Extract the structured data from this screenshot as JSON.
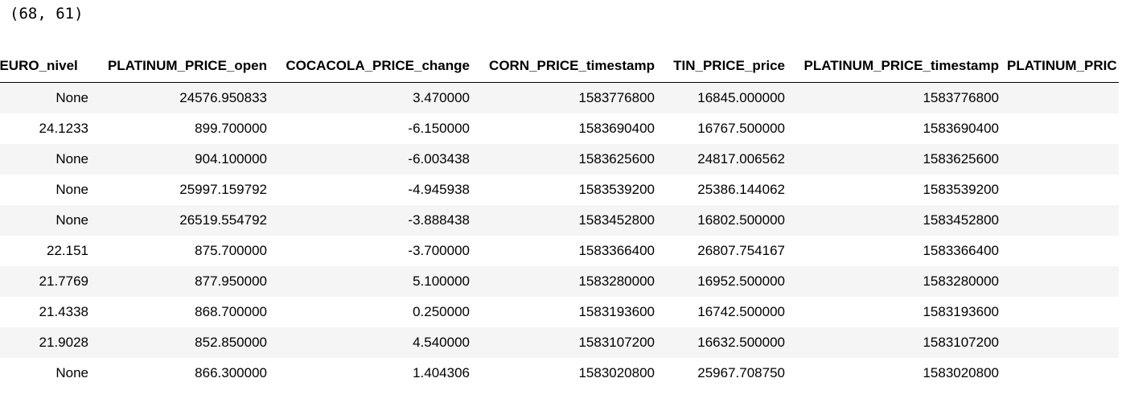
{
  "output": {
    "shape_text": "(68, 61)"
  },
  "table": {
    "columns": [
      "_EURO_nivel",
      "PLATINUM_PRICE_open",
      "COCACOLA_PRICE_change",
      "CORN_PRICE_timestamp",
      "TIN_PRICE_price",
      "PLATINUM_PRICE_timestamp",
      "PLATINUM_PRIC"
    ],
    "rows": [
      [
        "None",
        "24576.950833",
        "3.470000",
        "1583776800",
        "16845.000000",
        "1583776800",
        ""
      ],
      [
        "24.1233",
        "899.700000",
        "-6.150000",
        "1583690400",
        "16767.500000",
        "1583690400",
        ""
      ],
      [
        "None",
        "904.100000",
        "-6.003438",
        "1583625600",
        "24817.006562",
        "1583625600",
        ""
      ],
      [
        "None",
        "25997.159792",
        "-4.945938",
        "1583539200",
        "25386.144062",
        "1583539200",
        ""
      ],
      [
        "None",
        "26519.554792",
        "-3.888438",
        "1583452800",
        "16802.500000",
        "1583452800",
        ""
      ],
      [
        "22.151",
        "875.700000",
        "-3.700000",
        "1583366400",
        "26807.754167",
        "1583366400",
        ""
      ],
      [
        "21.7769",
        "877.950000",
        "5.100000",
        "1583280000",
        "16952.500000",
        "1583280000",
        ""
      ],
      [
        "21.4338",
        "868.700000",
        "0.250000",
        "1583193600",
        "16742.500000",
        "1583193600",
        ""
      ],
      [
        "21.9028",
        "852.850000",
        "4.540000",
        "1583107200",
        "16632.500000",
        "1583107200",
        ""
      ],
      [
        "None",
        "866.300000",
        "1.404306",
        "1583020800",
        "25967.708750",
        "1583020800",
        ""
      ]
    ]
  }
}
